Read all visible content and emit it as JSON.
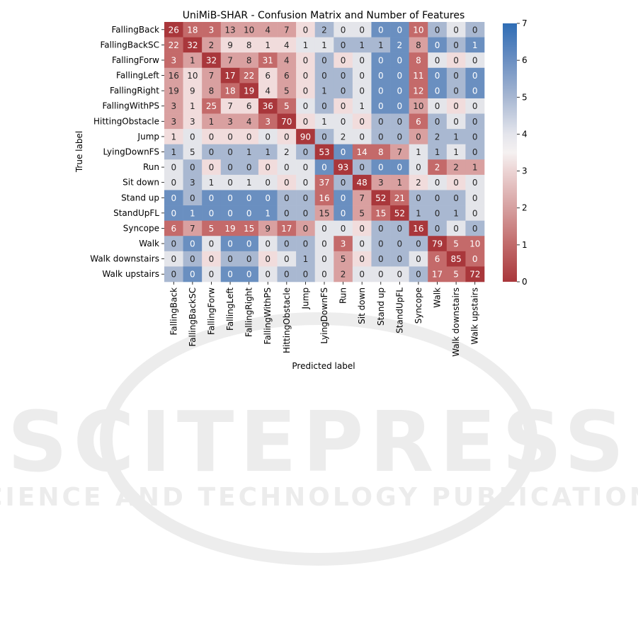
{
  "chart_data": {
    "type": "heatmap",
    "title": "UniMiB-SHAR - Confusion Matrix and Number of Features",
    "xlabel": "Predicted label",
    "ylabel": "True label",
    "labels": [
      "FallingBack",
      "FallingBackSC",
      "FallingForw",
      "FallingLeft",
      "FallingRight",
      "FallingWithPS",
      "HittingObstacle",
      "Jump",
      "LyingDownFS",
      "Run",
      "Sit down",
      "Stand up",
      "StandUpFL",
      "Syncope",
      "Walk",
      "Walk downstairs",
      "Walk upstairs"
    ],
    "values": [
      [
        26,
        18,
        3,
        13,
        10,
        4,
        7,
        0,
        2,
        0,
        0,
        0,
        0,
        10,
        0,
        0,
        0
      ],
      [
        22,
        32,
        2,
        9,
        8,
        1,
        4,
        1,
        1,
        0,
        1,
        1,
        2,
        8,
        0,
        0,
        1
      ],
      [
        3,
        1,
        32,
        7,
        8,
        31,
        4,
        0,
        0,
        0,
        0,
        0,
        0,
        8,
        0,
        0,
        0
      ],
      [
        16,
        10,
        7,
        17,
        22,
        6,
        6,
        0,
        0,
        0,
        0,
        0,
        0,
        11,
        0,
        0,
        0
      ],
      [
        19,
        9,
        8,
        18,
        19,
        4,
        5,
        0,
        1,
        0,
        0,
        0,
        0,
        12,
        0,
        0,
        0
      ],
      [
        3,
        1,
        25,
        7,
        6,
        36,
        5,
        0,
        0,
        0,
        1,
        0,
        0,
        10,
        0,
        0,
        0
      ],
      [
        3,
        3,
        1,
        3,
        4,
        3,
        70,
        0,
        1,
        0,
        0,
        0,
        0,
        6,
        0,
        0,
        0
      ],
      [
        1,
        0,
        0,
        0,
        0,
        0,
        0,
        90,
        0,
        2,
        0,
        0,
        0,
        0,
        2,
        1,
        0
      ],
      [
        1,
        5,
        0,
        0,
        1,
        1,
        2,
        0,
        53,
        0,
        14,
        8,
        7,
        1,
        1,
        1,
        0
      ],
      [
        0,
        0,
        0,
        0,
        0,
        0,
        0,
        0,
        0,
        93,
        0,
        0,
        0,
        0,
        2,
        2,
        1
      ],
      [
        0,
        3,
        1,
        0,
        1,
        0,
        0,
        0,
        37,
        0,
        48,
        3,
        1,
        2,
        0,
        0,
        0
      ],
      [
        0,
        0,
        0,
        0,
        0,
        0,
        0,
        0,
        16,
        0,
        7,
        52,
        21,
        0,
        0,
        0,
        0
      ],
      [
        0,
        1,
        0,
        0,
        0,
        1,
        0,
        0,
        15,
        0,
        5,
        15,
        52,
        1,
        0,
        1,
        0
      ],
      [
        6,
        7,
        5,
        19,
        15,
        9,
        17,
        0,
        0,
        0,
        0,
        0,
        0,
        16,
        0,
        0,
        0
      ],
      [
        0,
        0,
        0,
        0,
        0,
        0,
        0,
        0,
        0,
        3,
        0,
        0,
        0,
        0,
        79,
        5,
        10
      ],
      [
        0,
        0,
        0,
        0,
        0,
        0,
        0,
        1,
        0,
        5,
        0,
        0,
        0,
        0,
        6,
        85,
        0
      ],
      [
        0,
        0,
        0,
        0,
        0,
        0,
        0,
        0,
        0,
        2,
        0,
        0,
        0,
        0,
        17,
        5,
        72
      ]
    ],
    "number_of_features": [
      [
        0,
        1,
        1,
        2,
        2,
        2,
        2,
        3,
        5,
        4,
        4,
        6,
        6,
        1,
        5,
        4,
        5
      ],
      [
        1,
        0,
        2,
        3,
        3,
        3,
        3,
        4,
        4,
        5,
        5,
        5,
        6,
        2,
        6,
        5,
        6
      ],
      [
        1,
        2,
        0,
        2,
        2,
        1,
        2,
        3,
        5,
        3,
        4,
        6,
        6,
        1,
        4,
        3,
        4
      ],
      [
        2,
        3,
        2,
        0,
        1,
        3,
        2,
        3,
        5,
        5,
        4,
        6,
        6,
        1,
        6,
        5,
        6
      ],
      [
        2,
        3,
        2,
        1,
        0,
        3,
        2,
        3,
        5,
        5,
        4,
        6,
        6,
        1,
        6,
        5,
        6
      ],
      [
        2,
        3,
        1,
        3,
        3,
        0,
        1,
        4,
        5,
        3,
        4,
        6,
        6,
        2,
        4,
        3,
        4
      ],
      [
        2,
        3,
        2,
        2,
        2,
        1,
        0,
        3,
        4,
        4,
        3,
        5,
        5,
        1,
        5,
        4,
        5
      ],
      [
        3,
        4,
        3,
        3,
        3,
        4,
        3,
        0,
        5,
        4,
        4,
        5,
        5,
        2,
        5,
        5,
        5
      ],
      [
        5,
        4,
        5,
        5,
        5,
        5,
        4,
        5,
        0,
        6,
        1,
        1,
        2,
        4,
        5,
        4,
        5
      ],
      [
        4,
        5,
        3,
        5,
        5,
        3,
        4,
        4,
        6,
        0,
        5,
        6,
        6,
        4,
        1,
        2,
        2
      ],
      [
        4,
        5,
        4,
        4,
        4,
        4,
        3,
        4,
        1,
        5,
        0,
        2,
        2,
        3,
        4,
        3,
        4
      ],
      [
        6,
        5,
        6,
        6,
        6,
        6,
        5,
        5,
        1,
        6,
        2,
        0,
        1,
        5,
        5,
        5,
        4
      ],
      [
        6,
        6,
        6,
        6,
        6,
        6,
        5,
        5,
        2,
        6,
        2,
        1,
        0,
        5,
        5,
        5,
        4
      ],
      [
        1,
        2,
        1,
        1,
        1,
        2,
        1,
        2,
        4,
        4,
        3,
        5,
        5,
        0,
        5,
        4,
        5
      ],
      [
        5,
        6,
        4,
        6,
        6,
        4,
        5,
        5,
        4,
        1,
        4,
        5,
        5,
        5,
        0,
        1,
        1
      ],
      [
        4,
        5,
        3,
        5,
        5,
        3,
        4,
        5,
        4,
        2,
        3,
        5,
        5,
        4,
        1,
        0,
        1
      ],
      [
        5,
        6,
        4,
        6,
        6,
        4,
        5,
        5,
        4,
        2,
        4,
        4,
        4,
        5,
        1,
        1,
        0
      ]
    ],
    "colorbar": {
      "range": [
        0,
        7
      ],
      "ticks": [
        "0",
        "1",
        "2",
        "3",
        "4",
        "5",
        "6",
        "7"
      ],
      "colormap": "red-white-blue diverging"
    },
    "colors": {
      "low": "#a9373b",
      "mid": "#f4eded",
      "high": "#2f6db5"
    }
  },
  "watermark": {
    "line1": "SCITEPRESS",
    "line2": "SCIENCE AND TECHNOLOGY PUBLICATIONS"
  }
}
